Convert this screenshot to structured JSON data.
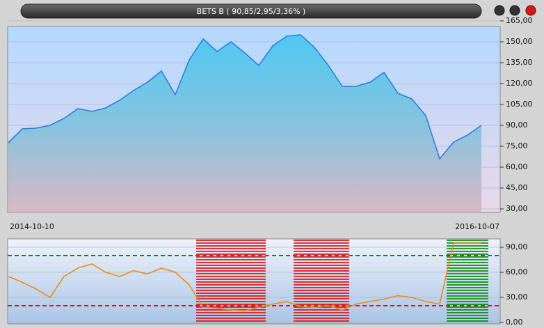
{
  "chart_data": [
    {
      "type": "area",
      "title": "BETS B ( 90,85/2,95/3,36% )",
      "categories": [
        "2014-10-10",
        null,
        null,
        null,
        null,
        null,
        null,
        null,
        null,
        null,
        null,
        null,
        null,
        null,
        null,
        null,
        null,
        null,
        null,
        null,
        null,
        null,
        null,
        null,
        null,
        null,
        null,
        null,
        null,
        null,
        null,
        null,
        null,
        null,
        "2016-10-07"
      ],
      "values": [
        77.5,
        87.5,
        88,
        90,
        95,
        102,
        100,
        102.5,
        108,
        115,
        121,
        129,
        112,
        137,
        152,
        143,
        150,
        142,
        133,
        147,
        154,
        155,
        146,
        133,
        118,
        118,
        121,
        128,
        113,
        109,
        97,
        66,
        78,
        83,
        90
      ],
      "color": "#2a7fe0",
      "ylim": [
        27.5,
        167.5
      ],
      "yticks": [
        {
          "value": 30,
          "label": "30,00"
        },
        {
          "value": 45,
          "label": "45,00"
        },
        {
          "value": 60,
          "label": "60,00"
        },
        {
          "value": 75,
          "label": "75,00"
        },
        {
          "value": 90,
          "label": "90,00"
        },
        {
          "value": 105,
          "label": "105,00"
        },
        {
          "value": 120,
          "label": "120,00"
        },
        {
          "value": 135,
          "label": "135,00"
        },
        {
          "value": 150,
          "label": "150,00"
        },
        {
          "value": 165,
          "label": "165,00"
        }
      ],
      "grid": true
    },
    {
      "type": "line",
      "values": [
        55,
        48,
        40,
        30,
        55,
        65,
        70,
        60,
        55,
        62,
        58,
        65,
        60,
        45,
        18,
        17,
        15,
        14,
        18,
        22,
        25,
        19,
        18,
        20,
        15,
        22,
        25,
        28,
        32,
        30,
        25,
        22,
        95,
        95,
        95
      ],
      "color": "#f08a10",
      "ylim": [
        0,
        100
      ],
      "yticks": [
        {
          "value": 0,
          "label": "0,00"
        },
        {
          "value": 30,
          "label": "30,00"
        },
        {
          "value": 60,
          "label": "60,00"
        },
        {
          "value": 90,
          "label": "90,00"
        }
      ],
      "levels": {
        "high": 80,
        "low": 20,
        "high_color": "#0a8a0a",
        "low_color": "#e01010"
      },
      "grid": true
    }
  ]
}
